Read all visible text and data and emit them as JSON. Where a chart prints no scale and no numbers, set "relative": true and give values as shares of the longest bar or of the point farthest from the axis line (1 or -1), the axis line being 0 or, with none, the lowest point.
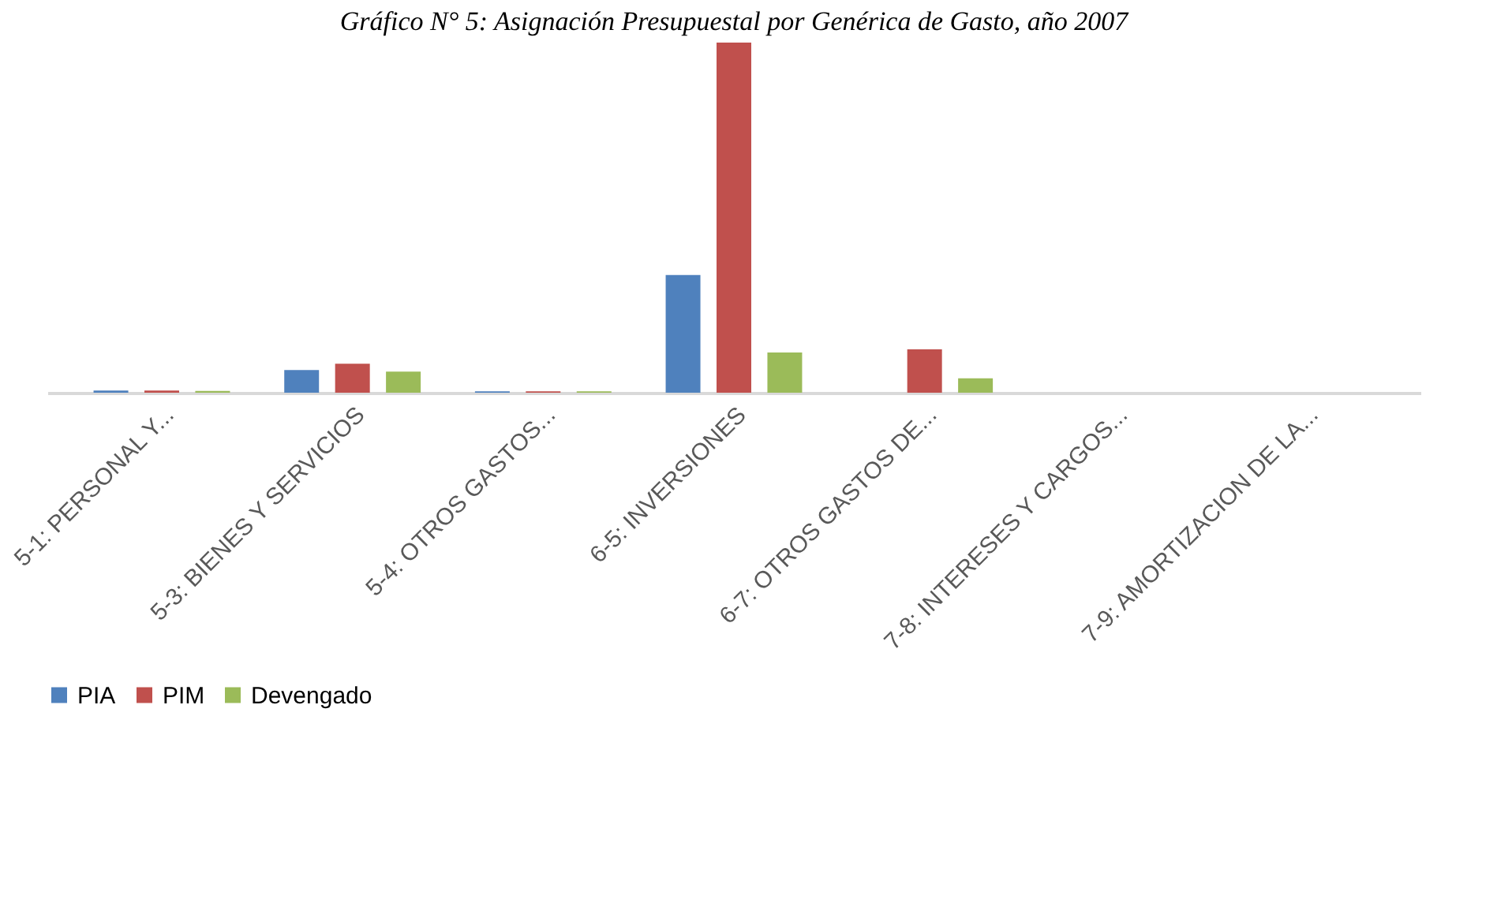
{
  "chart_data": {
    "type": "bar",
    "title": "Gráfico N° 5: Asignación Presupuestal por Genérica de Gasto, año 2007",
    "relative": true,
    "legend": "bottom",
    "grid": false,
    "categories": [
      "5-1: PERSONAL Y...",
      "5-3: BIENES Y SERVICIOS",
      "5-4: OTROS GASTOS...",
      "6-5: INVERSIONES",
      "6-7: OTROS GASTOS DE...",
      "7-8: INTERESES Y CARGOS...",
      "7-9: AMORTIZACION DE LA..."
    ],
    "series": [
      {
        "name": "PIA",
        "color": "#4f81bd",
        "values": [
          0.006,
          0.065,
          0.004,
          0.336,
          0,
          0,
          0
        ]
      },
      {
        "name": "PIM",
        "color": "#c0504d",
        "values": [
          0.006,
          0.083,
          0.004,
          1,
          0.124,
          0,
          0
        ]
      },
      {
        "name": "Devengado",
        "color": "#9bbb59",
        "values": [
          0.005,
          0.06,
          0.004,
          0.115,
          0.041,
          0,
          0
        ]
      }
    ]
  }
}
